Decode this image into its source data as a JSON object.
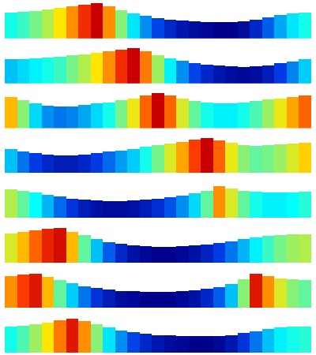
{
  "chart_data": [
    {
      "type": "bar",
      "x": [
        0,
        1,
        2,
        3,
        4,
        5,
        6,
        7,
        8,
        9,
        10,
        11,
        12,
        13,
        14,
        15,
        16,
        17,
        18,
        19,
        20,
        21,
        22,
        23,
        24
      ],
      "values": [
        0.72,
        0.74,
        0.77,
        0.8,
        0.84,
        0.88,
        0.93,
        0.97,
        0.88,
        0.78,
        0.69,
        0.62,
        0.56,
        0.52,
        0.49,
        0.47,
        0.46,
        0.45,
        0.45,
        0.47,
        0.52,
        0.58,
        0.64,
        0.69,
        0.72
      ],
      "xlim": [
        -0.5,
        24.5
      ],
      "ylim": [
        0,
        1
      ],
      "zlim": [
        0.45,
        0.97
      ],
      "tick_labels": false
    },
    {
      "type": "bar",
      "x": [
        0,
        1,
        2,
        3,
        4,
        5,
        6,
        7,
        8,
        9,
        10,
        11,
        12,
        13,
        14,
        15,
        16,
        17,
        18,
        19,
        20,
        21,
        22,
        23,
        24
      ],
      "values": [
        0.66,
        0.68,
        0.7,
        0.72,
        0.74,
        0.77,
        0.8,
        0.84,
        0.88,
        0.93,
        0.97,
        0.89,
        0.79,
        0.7,
        0.62,
        0.56,
        0.52,
        0.49,
        0.47,
        0.46,
        0.47,
        0.5,
        0.55,
        0.61,
        0.67
      ],
      "xlim": [
        -0.5,
        24.5
      ],
      "ylim": [
        0,
        1
      ],
      "zlim": [
        0.45,
        0.97
      ],
      "tick_labels": false
    },
    {
      "type": "bar",
      "x": [
        0,
        1,
        2,
        3,
        4,
        5,
        6,
        7,
        8,
        9,
        10,
        11,
        12,
        13,
        14,
        15,
        16,
        17,
        18,
        19,
        20,
        21,
        22,
        23,
        24
      ],
      "values": [
        0.86,
        0.78,
        0.68,
        0.62,
        0.6,
        0.61,
        0.64,
        0.68,
        0.72,
        0.77,
        0.83,
        0.9,
        0.97,
        0.9,
        0.82,
        0.76,
        0.72,
        0.7,
        0.7,
        0.72,
        0.75,
        0.79,
        0.83,
        0.87,
        0.9
      ],
      "xlim": [
        -0.5,
        24.5
      ],
      "ylim": [
        0,
        1
      ],
      "zlim": [
        0.45,
        0.97
      ],
      "tick_labels": false
    },
    {
      "type": "bar",
      "x": [
        0,
        1,
        2,
        3,
        4,
        5,
        6,
        7,
        8,
        9,
        10,
        11,
        12,
        13,
        14,
        15,
        16,
        17,
        18,
        19,
        20,
        21,
        22,
        23,
        24
      ],
      "values": [
        0.66,
        0.6,
        0.55,
        0.52,
        0.5,
        0.5,
        0.52,
        0.55,
        0.59,
        0.63,
        0.67,
        0.72,
        0.77,
        0.82,
        0.87,
        0.92,
        0.97,
        0.9,
        0.83,
        0.78,
        0.76,
        0.77,
        0.79,
        0.82,
        0.85
      ],
      "xlim": [
        -0.5,
        24.5
      ],
      "ylim": [
        0,
        1
      ],
      "zlim": [
        0.45,
        0.97
      ],
      "tick_labels": false
    },
    {
      "type": "bar",
      "x": [
        0,
        1,
        2,
        3,
        4,
        5,
        6,
        7,
        8,
        9,
        10,
        11,
        12,
        13,
        14,
        15,
        16,
        17,
        18,
        19,
        20,
        21,
        22,
        23,
        24
      ],
      "values": [
        0.8,
        0.76,
        0.71,
        0.65,
        0.59,
        0.54,
        0.5,
        0.48,
        0.47,
        0.47,
        0.48,
        0.5,
        0.53,
        0.57,
        0.62,
        0.68,
        0.76,
        0.88,
        0.82,
        0.76,
        0.72,
        0.7,
        0.7,
        0.71,
        0.73
      ],
      "xlim": [
        -0.5,
        24.5
      ],
      "ylim": [
        0,
        1
      ],
      "zlim": [
        0.45,
        0.97
      ],
      "tick_labels": false
    },
    {
      "type": "bar",
      "x": [
        0,
        1,
        2,
        3,
        4,
        5,
        6,
        7,
        8,
        9,
        10,
        11,
        12,
        13,
        14,
        15,
        16,
        17,
        18,
        19,
        20,
        21,
        22,
        23,
        24
      ],
      "values": [
        0.82,
        0.86,
        0.9,
        0.94,
        0.96,
        0.86,
        0.76,
        0.66,
        0.58,
        0.52,
        0.48,
        0.46,
        0.45,
        0.45,
        0.46,
        0.48,
        0.51,
        0.55,
        0.6,
        0.65,
        0.7,
        0.74,
        0.77,
        0.79,
        0.8
      ],
      "xlim": [
        -0.5,
        24.5
      ],
      "ylim": [
        0,
        1
      ],
      "zlim": [
        0.45,
        0.97
      ],
      "tick_labels": false
    },
    {
      "type": "bar",
      "x": [
        0,
        1,
        2,
        3,
        4,
        5,
        6,
        7,
        8,
        9,
        10,
        11,
        12,
        13,
        14,
        15,
        16,
        17,
        18,
        19,
        20,
        21,
        22,
        23,
        24
      ],
      "values": [
        0.88,
        0.92,
        0.95,
        0.86,
        0.76,
        0.67,
        0.6,
        0.54,
        0.5,
        0.47,
        0.46,
        0.45,
        0.45,
        0.45,
        0.46,
        0.48,
        0.52,
        0.58,
        0.66,
        0.78,
        0.95,
        0.88,
        0.82,
        0.78,
        0.76
      ],
      "xlim": [
        -0.5,
        24.5
      ],
      "ylim": [
        0,
        1
      ],
      "zlim": [
        0.45,
        0.97
      ],
      "tick_labels": false
    },
    {
      "type": "bar",
      "x": [
        0,
        1,
        2,
        3,
        4,
        5,
        6,
        7,
        8,
        9,
        10,
        11,
        12,
        13,
        14,
        15,
        16,
        17,
        18,
        19,
        20,
        21,
        22,
        23,
        24
      ],
      "values": [
        0.72,
        0.75,
        0.79,
        0.84,
        0.89,
        0.95,
        0.88,
        0.78,
        0.69,
        0.62,
        0.56,
        0.52,
        0.49,
        0.47,
        0.46,
        0.45,
        0.45,
        0.46,
        0.49,
        0.54,
        0.6,
        0.66,
        0.7,
        0.72,
        0.73
      ],
      "xlim": [
        -0.5,
        24.5
      ],
      "ylim": [
        0,
        1
      ],
      "zlim": [
        0.45,
        0.97
      ],
      "tick_labels": false
    }
  ]
}
